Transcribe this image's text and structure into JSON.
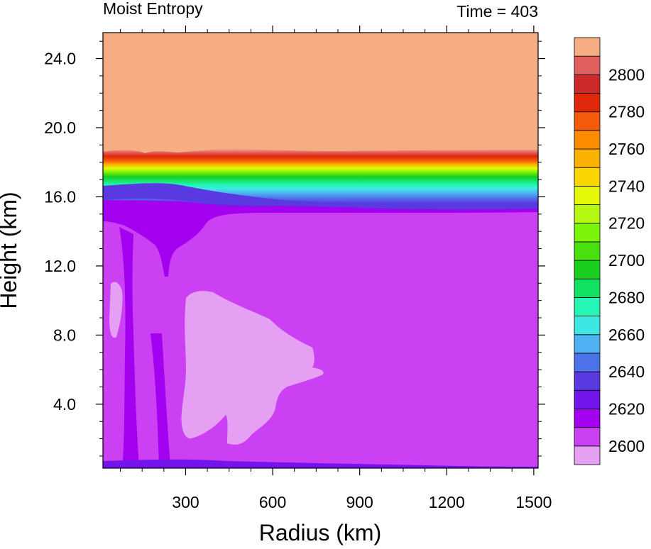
{
  "chart_data": {
    "type": "contour",
    "title": "Moist Entropy",
    "right_title": "Time = 403",
    "xlabel": "Radius (km)",
    "ylabel": "Height (km)",
    "xlim": [
      15,
      1515
    ],
    "ylim": [
      0.3,
      25.5
    ],
    "xticks": [
      300,
      600,
      900,
      1200,
      1500
    ],
    "xtick_labels": [
      "300",
      "600",
      "900",
      "1200",
      "1500"
    ],
    "yticks": [
      4,
      8,
      12,
      16,
      20,
      24
    ],
    "ytick_labels": [
      "4.0",
      "8.0",
      "12.0",
      "16.0",
      "20.0",
      "24.0"
    ],
    "colorbar": {
      "labels": [
        "2600",
        "2620",
        "2640",
        "2660",
        "2680",
        "2700",
        "2720",
        "2740",
        "2760",
        "2780",
        "2800"
      ],
      "colors": [
        "#e59ff3",
        "#cc40f3",
        "#a300f0",
        "#7214ea",
        "#5a3ae0",
        "#4d73e8",
        "#4fb2f2",
        "#3ee8e2",
        "#25f5b5",
        "#12e262",
        "#1bcf1f",
        "#49e00e",
        "#7cf50a",
        "#b6f814",
        "#e6f80a",
        "#fbd600",
        "#fbb100",
        "#fb8c00",
        "#f55a0a",
        "#e0280a",
        "#cc2a2a",
        "#e06060",
        "#f7ad84"
      ]
    },
    "grid": false,
    "legend": "colorbar-right"
  }
}
